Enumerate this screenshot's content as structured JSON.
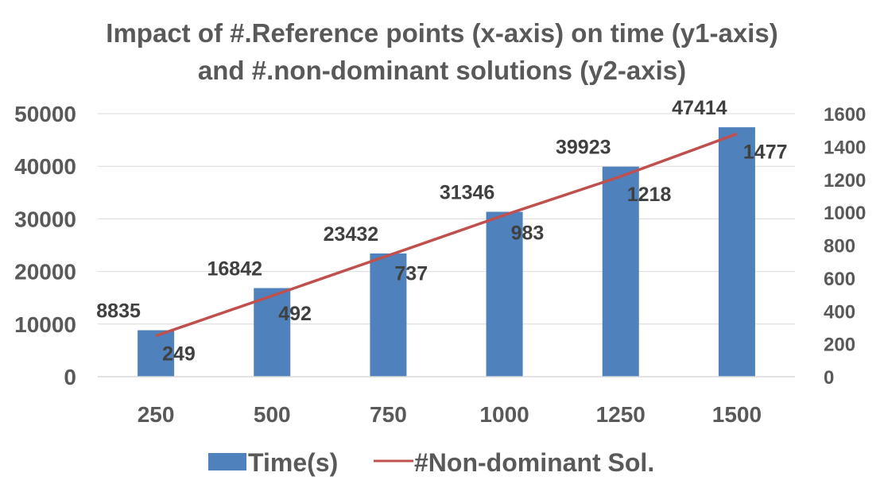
{
  "chart_data": {
    "type": "bar",
    "title_line1": "Impact of  #.Reference points (x-axis) on time (y1-axis)",
    "title_line2": "and #.non-dominant solutions  (y2-axis)",
    "categories": [
      "250",
      "500",
      "750",
      "1000",
      "1250",
      "1500"
    ],
    "series": [
      {
        "name": "Time(s)",
        "type": "bar",
        "axis": "y1",
        "color": "#4F81BD",
        "values": [
          8835,
          16842,
          23432,
          31346,
          39923,
          47414
        ]
      },
      {
        "name": "#Non-dominant Sol.",
        "type": "line",
        "axis": "y2",
        "color": "#C0504D",
        "values": [
          249,
          492,
          737,
          983,
          1218,
          1477
        ]
      }
    ],
    "y1_ticks": [
      0,
      10000,
      20000,
      30000,
      40000,
      50000
    ],
    "y2_ticks": [
      0,
      200,
      400,
      600,
      800,
      1000,
      1200,
      1400,
      1600
    ],
    "y1lim": [
      0,
      50000
    ],
    "y2lim": [
      0,
      1600
    ],
    "grid": true,
    "legend_position": "bottom",
    "gridline_color": "#D9D9D9"
  }
}
